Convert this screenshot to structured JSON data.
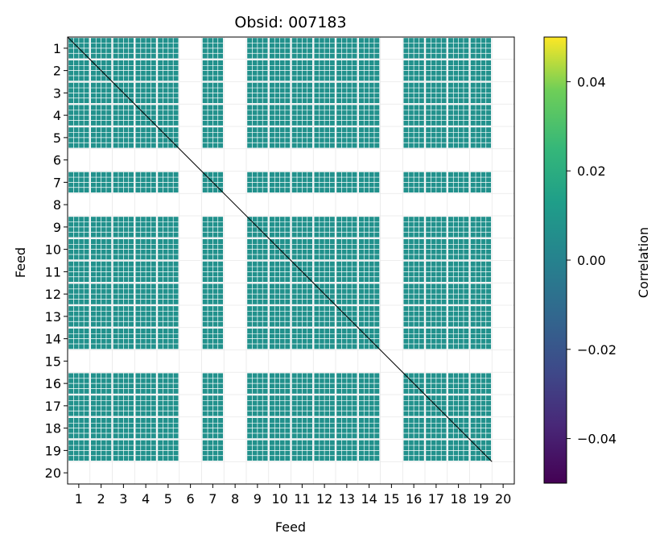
{
  "chart_data": {
    "type": "heatmap",
    "title": "Obsid: 007183",
    "xlabel": "Feed",
    "ylabel": "Feed",
    "feeds": [
      "1",
      "2",
      "3",
      "4",
      "5",
      "6",
      "7",
      "8",
      "9",
      "10",
      "11",
      "12",
      "13",
      "14",
      "15",
      "16",
      "17",
      "18",
      "19",
      "20"
    ],
    "active_feeds": [
      1,
      2,
      3,
      4,
      5,
      7,
      9,
      10,
      11,
      12,
      13,
      14,
      16,
      17,
      18,
      19
    ],
    "empty_feeds": [
      6,
      8,
      15,
      20
    ],
    "cell_value_approx": 0.0,
    "colorbar": {
      "label": "Correlation",
      "colormap": "viridis",
      "vmin": -0.05,
      "vmax": 0.05,
      "tick_values": [
        0.04,
        0.02,
        0.0,
        -0.02,
        -0.04
      ],
      "tick_labels": [
        "0.04",
        "0.02",
        "0.00",
        "−0.02",
        "−0.04"
      ]
    },
    "colors": {
      "cell": "#21918c",
      "gap": "#ffffff",
      "diagonal": "#000000",
      "grid": "#e8e8e8"
    }
  }
}
